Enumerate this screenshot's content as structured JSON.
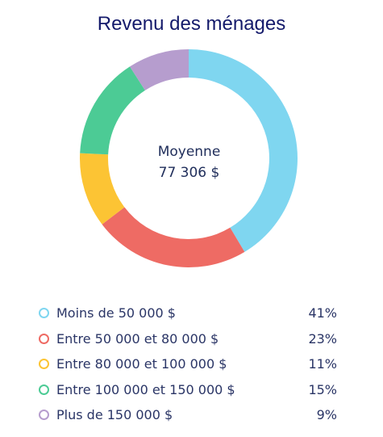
{
  "chart_data": {
    "type": "pie",
    "title": "Revenu des ménages",
    "center_label": "Moyenne",
    "center_value": "77 306 $",
    "legend_position": "bottom",
    "slices": [
      {
        "label": "Moins de 50 000 $",
        "value": 41,
        "display": "41%",
        "color": "#7fd6f0"
      },
      {
        "label": "Entre 50 000 et 80 000 $",
        "value": 23,
        "display": "23%",
        "color": "#ee6b64"
      },
      {
        "label": "Entre 80 000 et 100 000 $",
        "value": 11,
        "display": "11%",
        "color": "#fcc434"
      },
      {
        "label": "Entre 100 000 et 150 000 $",
        "value": 15,
        "display": "15%",
        "color": "#4ccb95"
      },
      {
        "label": "Plus de 150 000 $",
        "value": 9,
        "display": "9%",
        "color": "#b69dce"
      }
    ]
  }
}
